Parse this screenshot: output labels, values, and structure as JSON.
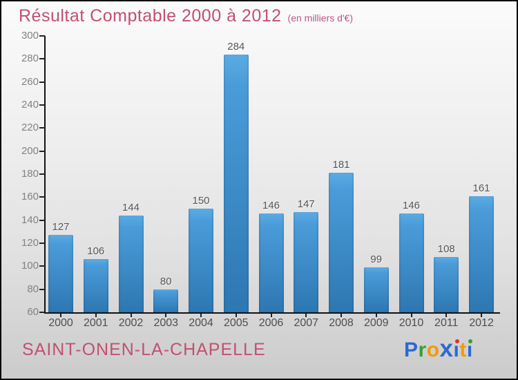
{
  "title": "Résultat Comptable 2000 à 2012",
  "subtitle": "(en milliers d'€)",
  "footer": {
    "commune": "SAINT-ONEN-LA-CHAPELLE"
  },
  "logo": {
    "text": "Proxiti",
    "letters": [
      {
        "ch": "P",
        "color": "#2a6ad2"
      },
      {
        "ch": "r",
        "color": "#33a133"
      },
      {
        "ch": "o",
        "color": "#f49a00"
      },
      {
        "ch": "x",
        "color": "#2a6ad2",
        "big": true
      },
      {
        "ch": "i",
        "color": "#2a6ad2",
        "dot": "#e03122"
      },
      {
        "ch": "t",
        "color": "#f49a00"
      },
      {
        "ch": "i",
        "color": "#2a6ad2",
        "dot": "#33a133"
      }
    ]
  },
  "colors": {
    "title": "#c25070",
    "subtitle": "#bd5583",
    "bar_top": "#5babe3",
    "bar_bottom": "#2d77b2",
    "axis": "#111111",
    "tick_label": "#828282",
    "value_label": "#555555"
  },
  "chart_data": {
    "type": "bar",
    "title": "Résultat Comptable 2000 à 2012",
    "subtitle": "(en milliers d'€)",
    "categories": [
      "2000",
      "2001",
      "2002",
      "2003",
      "2004",
      "2005",
      "2006",
      "2007",
      "2008",
      "2009",
      "2010",
      "2011",
      "2012"
    ],
    "values": [
      127,
      106,
      144,
      80,
      150,
      284,
      146,
      147,
      181,
      99,
      146,
      108,
      161
    ],
    "xlabel": "",
    "ylabel": "",
    "ylim": [
      60,
      300
    ],
    "yticks": [
      60,
      80,
      100,
      120,
      140,
      160,
      180,
      200,
      220,
      240,
      260,
      280,
      300
    ],
    "grid": false,
    "legend": false,
    "value_labels_shown": true
  }
}
